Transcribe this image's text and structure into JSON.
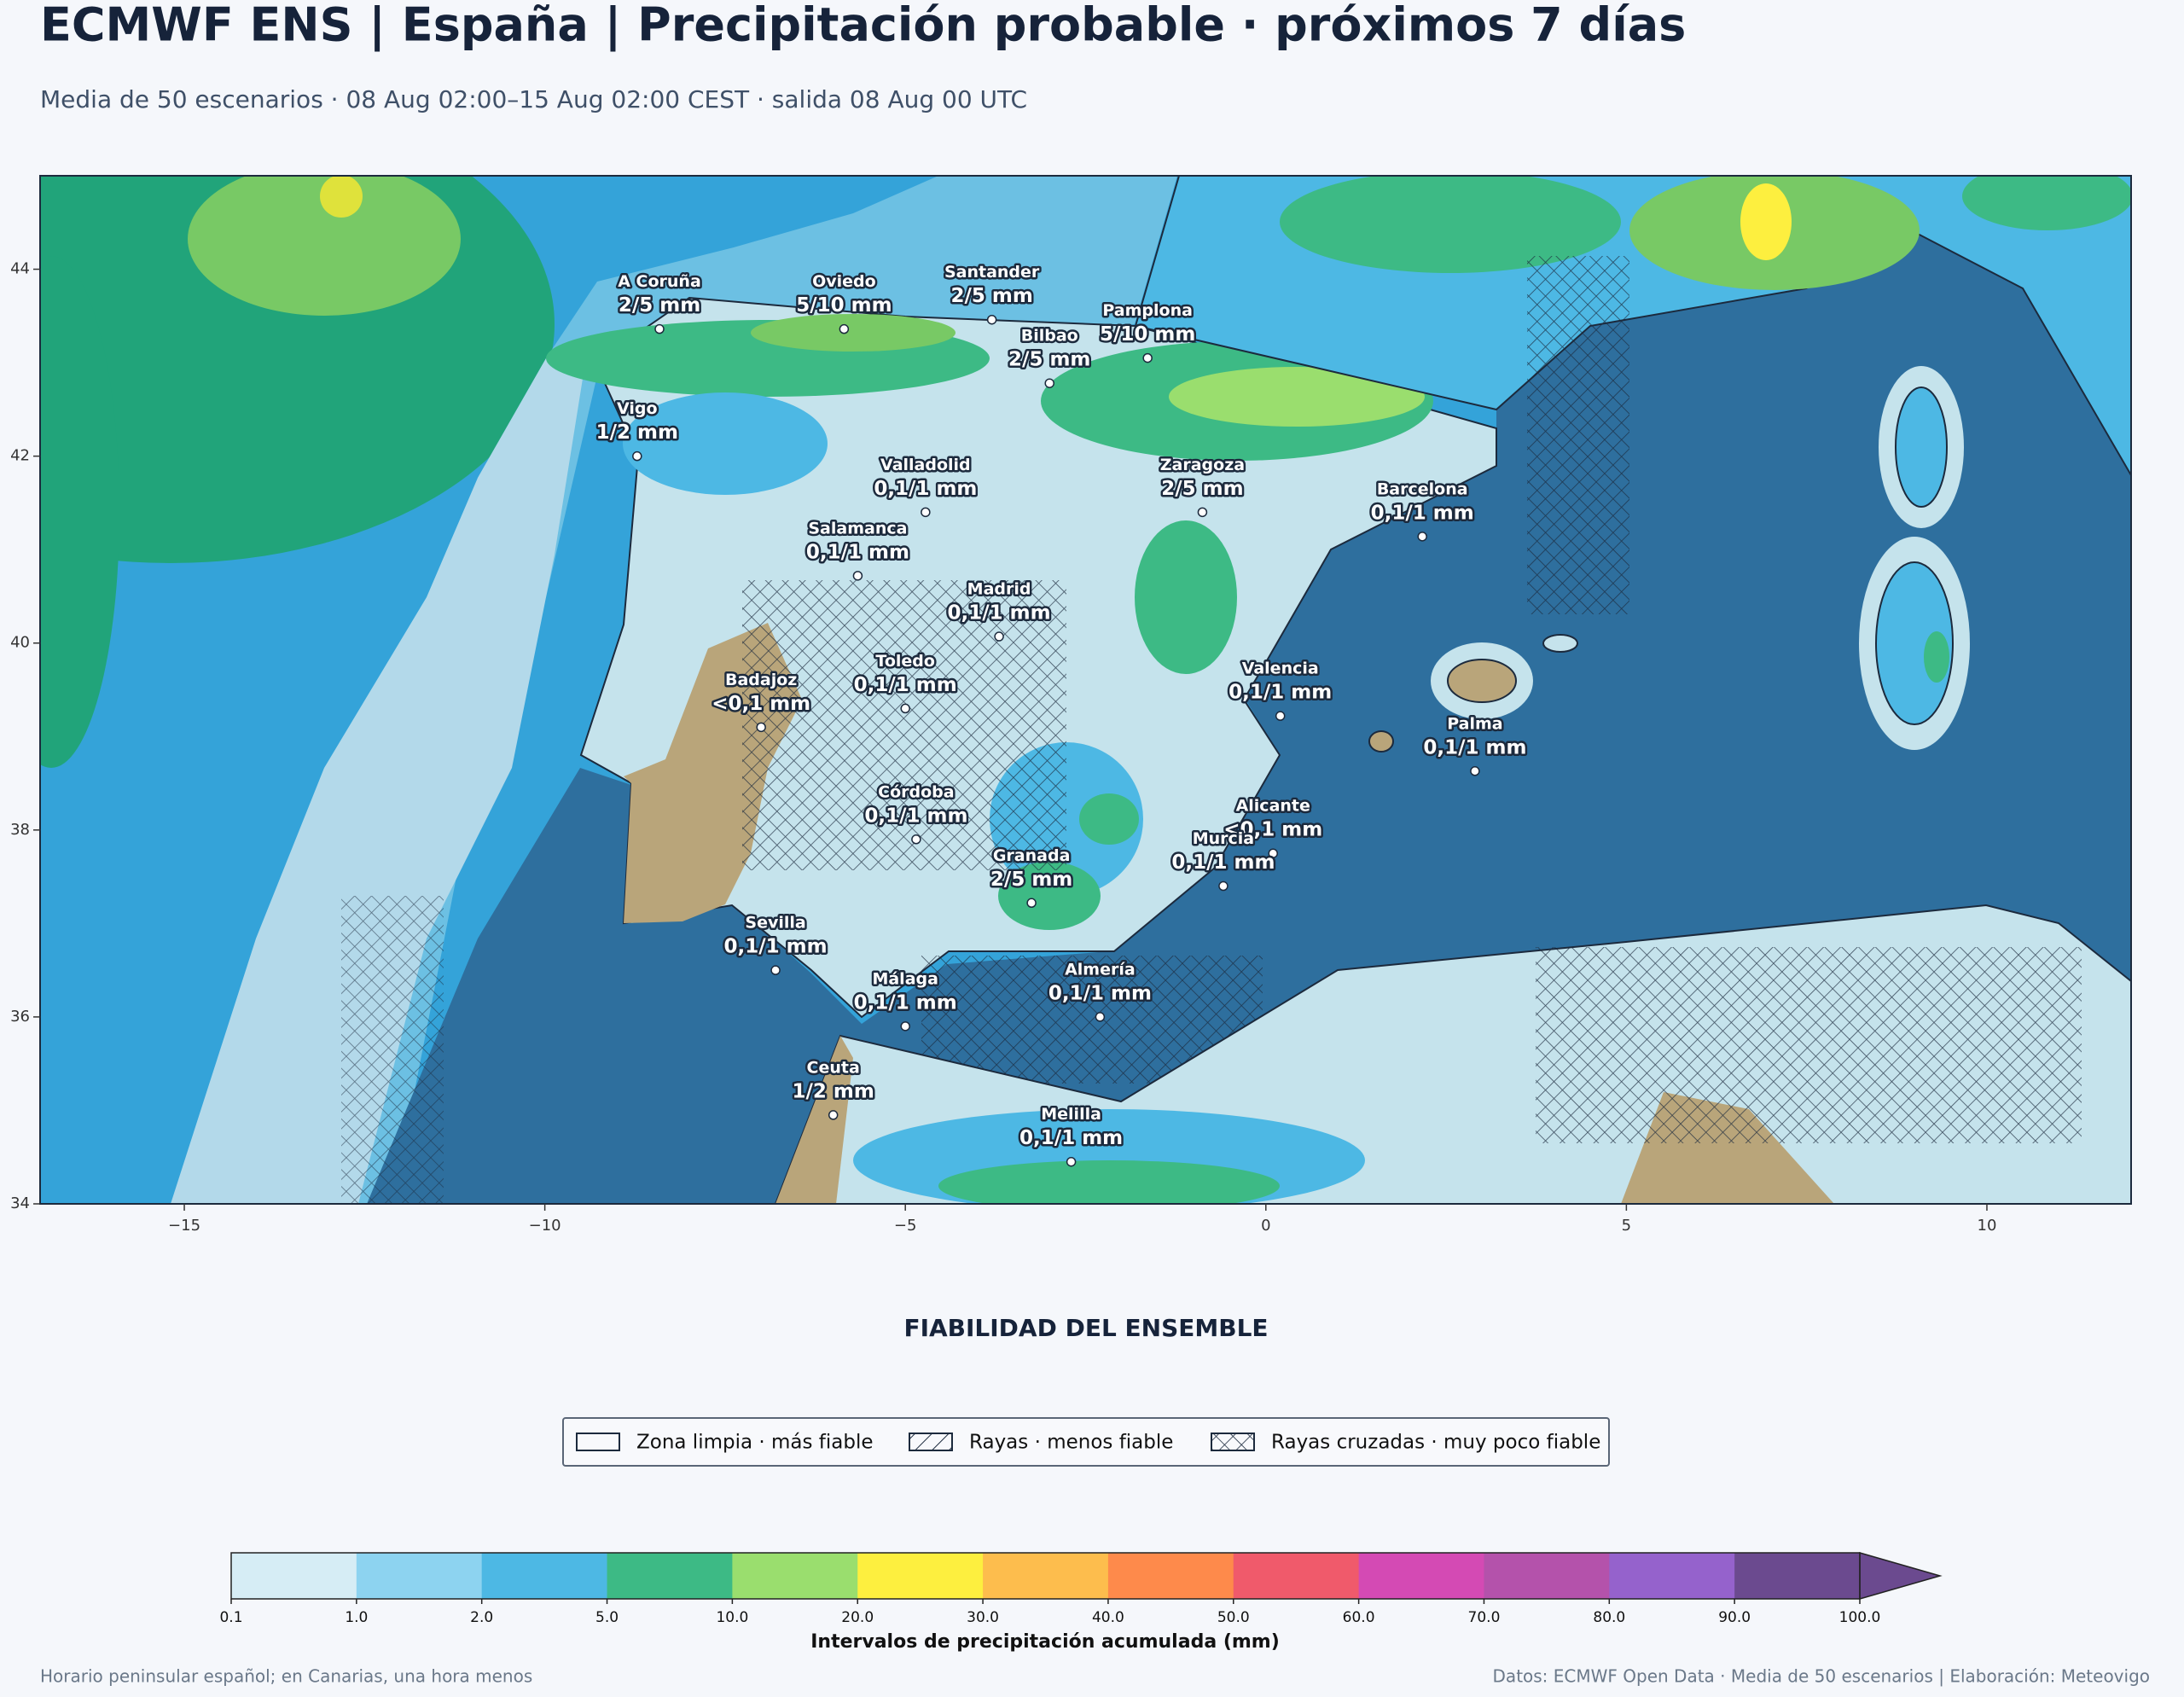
{
  "title": "ECMWF ENS | España | Precipitación probable · próximos 7 días",
  "subtitle": "Media de 50 escenarios · 08 Aug 02:00–15 Aug 02:00 CEST · salida 08 Aug 00 UTC",
  "map": {
    "xlim": [
      -17,
      12
    ],
    "ylim": [
      34,
      45
    ],
    "xticks": [
      {
        "value": -15,
        "label": "−15"
      },
      {
        "value": -10,
        "label": "−10"
      },
      {
        "value": -5,
        "label": "−5"
      },
      0,
      5,
      10
    ],
    "yticks": [
      34,
      36,
      38,
      40,
      42,
      44
    ],
    "cities": [
      {
        "name": "A Coruña",
        "label": "2/5 mm",
        "lon": -8.41,
        "lat": 43.36
      },
      {
        "name": "Oviedo",
        "label": "5/10 mm",
        "lon": -5.85,
        "lat": 43.36
      },
      {
        "name": "Santander",
        "label": "2/5 mm",
        "lon": -3.8,
        "lat": 43.46
      },
      {
        "name": "Bilbao",
        "label": "2/5 mm",
        "lon": -3.0,
        "lat": 42.78
      },
      {
        "name": "Pamplona",
        "label": "5/10 mm",
        "lon": -1.64,
        "lat": 43.05
      },
      {
        "name": "Vigo",
        "label": "1/2 mm",
        "lon": -8.72,
        "lat": 42.0
      },
      {
        "name": "Valladolid",
        "label": "0,1/1 mm",
        "lon": -4.72,
        "lat": 41.4
      },
      {
        "name": "Zaragoza",
        "label": "2/5 mm",
        "lon": -0.88,
        "lat": 41.4
      },
      {
        "name": "Barcelona",
        "label": "0,1/1 mm",
        "lon": 2.17,
        "lat": 41.14
      },
      {
        "name": "Salamanca",
        "label": "0,1/1 mm",
        "lon": -5.66,
        "lat": 40.72
      },
      {
        "name": "Madrid",
        "label": "0,1/1 mm",
        "lon": -3.7,
        "lat": 40.07
      },
      {
        "name": "Valencia",
        "label": "0,1/1 mm",
        "lon": 0.2,
        "lat": 39.22
      },
      {
        "name": "Toledo",
        "label": "0,1/1 mm",
        "lon": -5.0,
        "lat": 39.3
      },
      {
        "name": "Badajoz",
        "label": "<0,1 mm",
        "lon": -7.0,
        "lat": 39.1
      },
      {
        "name": "Palma",
        "label": "0,1/1 mm",
        "lon": 2.9,
        "lat": 38.63
      },
      {
        "name": "Córdoba",
        "label": "0,1/1 mm",
        "lon": -4.85,
        "lat": 37.9
      },
      {
        "name": "Alicante",
        "label": "<0,1 mm",
        "lon": 0.1,
        "lat": 37.75
      },
      {
        "name": "Murcia",
        "label": "0,1/1 mm",
        "lon": -0.59,
        "lat": 37.4
      },
      {
        "name": "Granada",
        "label": "2/5 mm",
        "lon": -3.25,
        "lat": 37.22
      },
      {
        "name": "Sevilla",
        "label": "0,1/1 mm",
        "lon": -6.8,
        "lat": 36.5
      },
      {
        "name": "Almería",
        "label": "0,1/1 mm",
        "lon": -2.3,
        "lat": 36.0
      },
      {
        "name": "Málaga",
        "label": "0,1/1 mm",
        "lon": -5.0,
        "lat": 35.9
      },
      {
        "name": "Ceuta",
        "label": "1/2 mm",
        "lon": -6.0,
        "lat": 34.95
      },
      {
        "name": "Melilla",
        "label": "0,1/1 mm",
        "lon": -2.7,
        "lat": 34.45
      }
    ]
  },
  "reliability": {
    "title": "FIABILIDAD DEL ENSEMBLE",
    "entries": [
      {
        "label": "Zona limpia · más fiable",
        "pattern": "none"
      },
      {
        "label": "Rayas · menos fiable",
        "pattern": "hatch"
      },
      {
        "label": "Rayas cruzadas · muy poco fiable",
        "pattern": "crosshatch"
      }
    ]
  },
  "colorbar": {
    "label": "Intervalos de precipitación acumulada (mm)",
    "bounds": [
      0.1,
      {
        "value": 1,
        "label": "1.0"
      },
      {
        "value": 2,
        "label": "2.0"
      },
      {
        "value": 5,
        "label": "5.0"
      },
      {
        "value": 10,
        "label": "10.0"
      },
      {
        "value": 20,
        "label": "20.0"
      },
      {
        "value": 30,
        "label": "30.0"
      },
      {
        "value": 40,
        "label": "40.0"
      },
      {
        "value": 50,
        "label": "50.0"
      },
      {
        "value": 60,
        "label": "60.0"
      },
      {
        "value": 70,
        "label": "70.0"
      },
      {
        "value": 80,
        "label": "80.0"
      },
      {
        "value": 90,
        "label": "90.0"
      },
      {
        "value": 100,
        "label": "100.0"
      }
    ],
    "colors": [
      "#d6edf5",
      "#8dd3f0",
      "#4db8e4",
      "#3dba85",
      "#9ade6e",
      "#fdef3f",
      "#fdbd4d",
      "#fe8a4b",
      "#f05a6b",
      "#d44ab4",
      "#b452ab",
      "#9562cc",
      "#6b4a8f"
    ],
    "extend_color": "#6b4a8f"
  },
  "footer": {
    "left": "Horario peninsular español; en Canarias, una hora menos",
    "right": "Datos: ECMWF Open Data · Media de 50 escenarios | Elaboración: Meteovigo"
  }
}
